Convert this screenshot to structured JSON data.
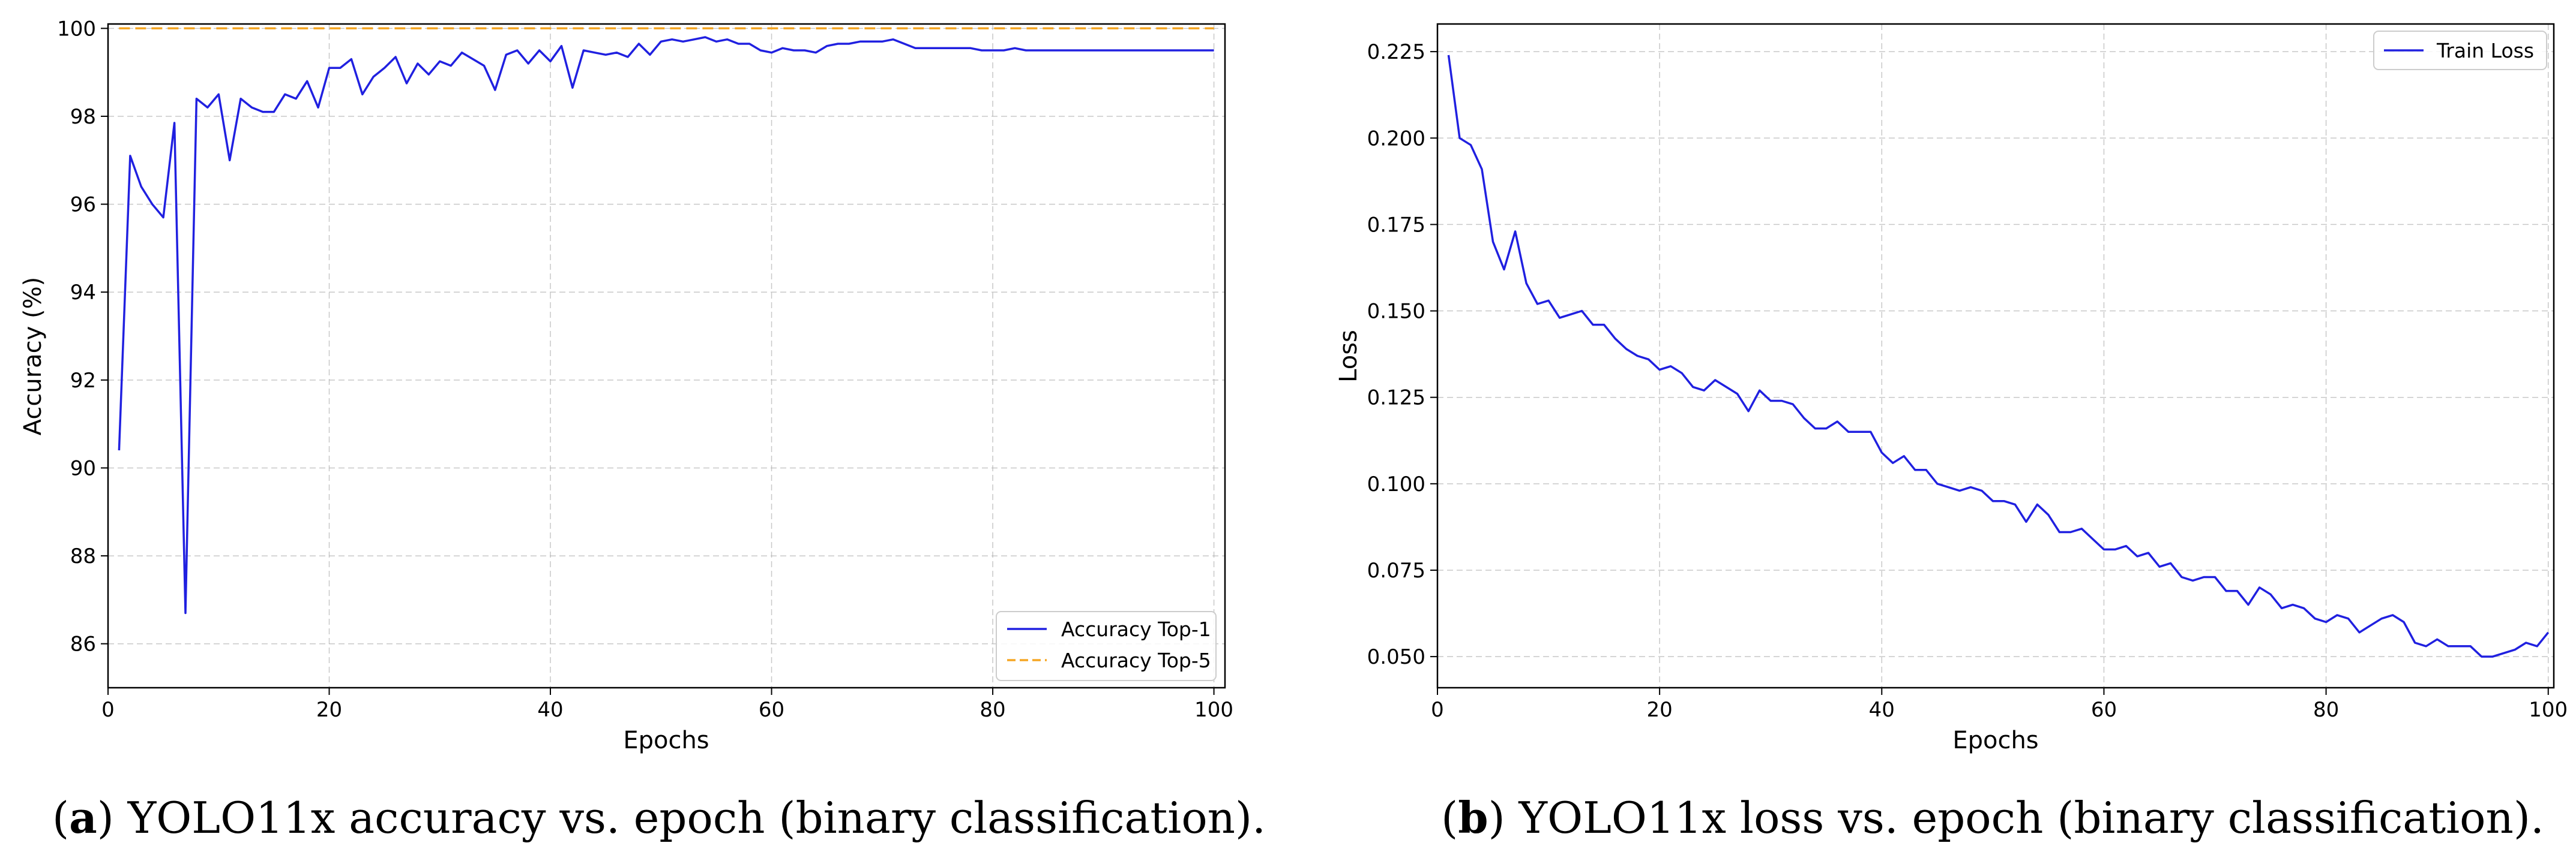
{
  "charts": [
    {
      "caption": {
        "open": "(",
        "letter": "a",
        "text": ") YOLO11x accuracy vs. epoch (binary classification)."
      },
      "chart_data": {
        "type": "line",
        "xlabel": "Epochs",
        "ylabel": "Accuracy (%)",
        "xlim": [
          0,
          101
        ],
        "ylim": [
          85,
          100.1
        ],
        "xticks": [
          0,
          20,
          40,
          60,
          80,
          100
        ],
        "yticks": [
          86,
          88,
          90,
          92,
          94,
          96,
          98,
          100
        ],
        "grid": true,
        "legend_position": "lower-right",
        "series": [
          {
            "name": "Accuracy Top-1",
            "color": "#2020e0",
            "style": "solid",
            "x": [
              1,
              2,
              3,
              4,
              5,
              6,
              7,
              8,
              9,
              10,
              11,
              12,
              13,
              14,
              15,
              16,
              17,
              18,
              19,
              20,
              21,
              22,
              23,
              24,
              25,
              26,
              27,
              28,
              29,
              30,
              31,
              32,
              33,
              34,
              35,
              36,
              37,
              38,
              39,
              40,
              41,
              42,
              43,
              44,
              45,
              46,
              47,
              48,
              49,
              50,
              51,
              52,
              53,
              54,
              55,
              56,
              57,
              58,
              59,
              60,
              61,
              62,
              63,
              64,
              65,
              66,
              67,
              68,
              69,
              70,
              71,
              72,
              73,
              74,
              75,
              76,
              77,
              78,
              79,
              80,
              81,
              82,
              83,
              84,
              85,
              86,
              87,
              88,
              89,
              90,
              91,
              92,
              93,
              94,
              95,
              96,
              97,
              98,
              99,
              100
            ],
            "values": [
              90.4,
              97.1,
              96.4,
              96.0,
              95.7,
              97.85,
              86.7,
              98.4,
              98.2,
              98.5,
              97.0,
              98.4,
              98.2,
              98.1,
              98.1,
              98.5,
              98.4,
              98.8,
              98.2,
              99.1,
              99.1,
              99.3,
              98.5,
              98.9,
              99.1,
              99.35,
              98.75,
              99.2,
              98.95,
              99.25,
              99.15,
              99.45,
              99.3,
              99.15,
              98.6,
              99.4,
              99.5,
              99.2,
              99.5,
              99.25,
              99.6,
              98.65,
              99.5,
              99.45,
              99.4,
              99.45,
              99.35,
              99.65,
              99.4,
              99.7,
              99.75,
              99.7,
              99.75,
              99.8,
              99.7,
              99.75,
              99.65,
              99.65,
              99.5,
              99.45,
              99.55,
              99.5,
              99.5,
              99.45,
              99.6,
              99.65,
              99.65,
              99.7,
              99.7,
              99.7,
              99.75,
              99.65,
              99.55,
              99.55,
              99.55,
              99.55,
              99.55,
              99.55,
              99.5,
              99.5,
              99.5,
              99.55,
              99.5,
              99.5,
              99.5,
              99.5,
              99.5,
              99.5,
              99.5,
              99.5,
              99.5,
              99.5,
              99.5,
              99.5,
              99.5,
              99.5,
              99.5,
              99.5,
              99.5,
              99.5
            ]
          },
          {
            "name": "Accuracy Top-5",
            "color": "#f5a623",
            "style": "dashed",
            "x": [
              1,
              100
            ],
            "values": [
              100,
              100
            ]
          }
        ]
      }
    },
    {
      "caption": {
        "open": "(",
        "letter": "b",
        "text": ") YOLO11x loss vs. epoch (binary classification)."
      },
      "chart_data": {
        "type": "line",
        "xlabel": "Epochs",
        "ylabel": "Loss",
        "xlim": [
          0,
          100.5
        ],
        "ylim": [
          0.041,
          0.233
        ],
        "xticks": [
          0,
          20,
          40,
          60,
          80,
          100
        ],
        "yticks": [
          0.05,
          0.075,
          0.1,
          0.125,
          0.15,
          0.175,
          0.2,
          0.225
        ],
        "ytick_labels": [
          "0.050",
          "0.075",
          "0.100",
          "0.125",
          "0.150",
          "0.175",
          "0.200",
          "0.225"
        ],
        "grid": true,
        "legend_position": "upper-right",
        "series": [
          {
            "name": "Train Loss",
            "color": "#2020e0",
            "style": "solid",
            "x": [
              1,
              2,
              3,
              4,
              5,
              6,
              7,
              8,
              9,
              10,
              11,
              12,
              13,
              14,
              15,
              16,
              17,
              18,
              19,
              20,
              21,
              22,
              23,
              24,
              25,
              26,
              27,
              28,
              29,
              30,
              31,
              32,
              33,
              34,
              35,
              36,
              37,
              38,
              39,
              40,
              41,
              42,
              43,
              44,
              45,
              46,
              47,
              48,
              49,
              50,
              51,
              52,
              53,
              54,
              55,
              56,
              57,
              58,
              59,
              60,
              61,
              62,
              63,
              64,
              65,
              66,
              67,
              68,
              69,
              70,
              71,
              72,
              73,
              74,
              75,
              76,
              77,
              78,
              79,
              80,
              81,
              82,
              83,
              84,
              85,
              86,
              87,
              88,
              89,
              90,
              91,
              92,
              93,
              94,
              95,
              96,
              97,
              98,
              99,
              100
            ],
            "values": [
              0.224,
              0.2,
              0.198,
              0.191,
              0.17,
              0.162,
              0.173,
              0.158,
              0.152,
              0.153,
              0.148,
              0.149,
              0.15,
              0.146,
              0.146,
              0.142,
              0.139,
              0.137,
              0.136,
              0.133,
              0.134,
              0.132,
              0.128,
              0.127,
              0.13,
              0.128,
              0.126,
              0.121,
              0.127,
              0.124,
              0.124,
              0.123,
              0.119,
              0.116,
              0.116,
              0.118,
              0.115,
              0.115,
              0.115,
              0.109,
              0.106,
              0.108,
              0.104,
              0.104,
              0.1,
              0.099,
              0.098,
              0.099,
              0.098,
              0.095,
              0.095,
              0.094,
              0.089,
              0.094,
              0.091,
              0.086,
              0.086,
              0.087,
              0.084,
              0.081,
              0.081,
              0.082,
              0.079,
              0.08,
              0.076,
              0.077,
              0.073,
              0.072,
              0.073,
              0.073,
              0.069,
              0.069,
              0.065,
              0.07,
              0.068,
              0.064,
              0.065,
              0.064,
              0.061,
              0.06,
              0.062,
              0.061,
              0.057,
              0.059,
              0.061,
              0.062,
              0.06,
              0.054,
              0.053,
              0.055,
              0.053,
              0.053,
              0.053,
              0.05,
              0.05,
              0.051,
              0.052,
              0.054,
              0.053,
              0.057
            ]
          }
        ]
      }
    }
  ]
}
